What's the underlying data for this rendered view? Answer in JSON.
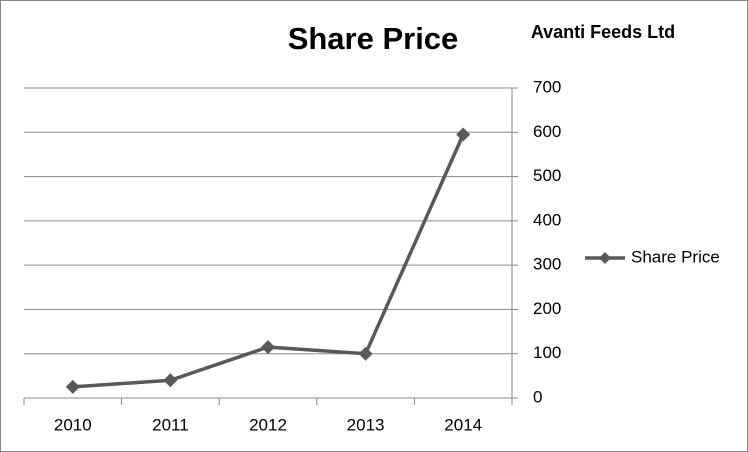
{
  "chart_data": {
    "type": "line",
    "title": "Share Price",
    "annotation": "Avanti Feeds Ltd",
    "categories": [
      "2010",
      "2011",
      "2012",
      "2013",
      "2014"
    ],
    "series": [
      {
        "name": "Share Price",
        "color": "#595959",
        "marker": "diamond",
        "values": [
          25,
          40,
          115,
          100,
          595
        ]
      }
    ],
    "ylim": [
      0,
      700
    ],
    "yticks": [
      0,
      100,
      200,
      300,
      400,
      500,
      600,
      700
    ],
    "y_axis_side": "right",
    "grid": true,
    "legend": "right"
  }
}
